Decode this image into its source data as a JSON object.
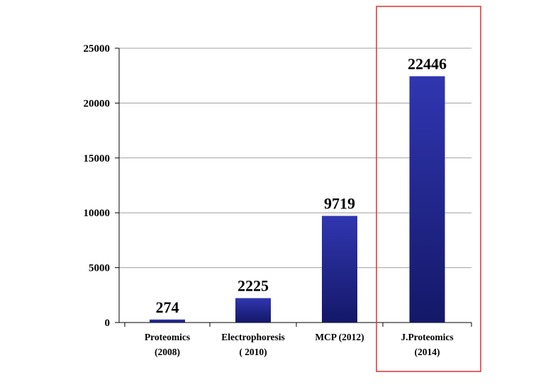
{
  "chart_data": {
    "type": "bar",
    "title": "",
    "xlabel": "",
    "ylabel": "",
    "categories": [
      [
        "Proteomics",
        "(2008)"
      ],
      [
        "Electrophoresis",
        "( 2010)"
      ],
      [
        "MCP (2012)"
      ],
      [
        "J.Proteomics",
        "(2014)"
      ]
    ],
    "values": [
      274,
      2225,
      9719,
      22446
    ],
    "data_labels": [
      "274",
      "2225",
      "9719",
      "22446"
    ],
    "yticks": [
      0,
      5000,
      10000,
      15000,
      20000,
      25000
    ],
    "ytick_labels": [
      "0",
      "5000",
      "10000",
      "15000",
      "20000",
      "25000"
    ],
    "ylim": [
      0,
      25000
    ],
    "grid": "horizontal",
    "legend": "none",
    "highlighted_category": "J.Proteomics (2014)",
    "colors": {
      "bar_top": "#3036b0",
      "bar_bottom": "#141868",
      "grid": "#a0a0a0",
      "highlight_box": "#e03030"
    }
  }
}
